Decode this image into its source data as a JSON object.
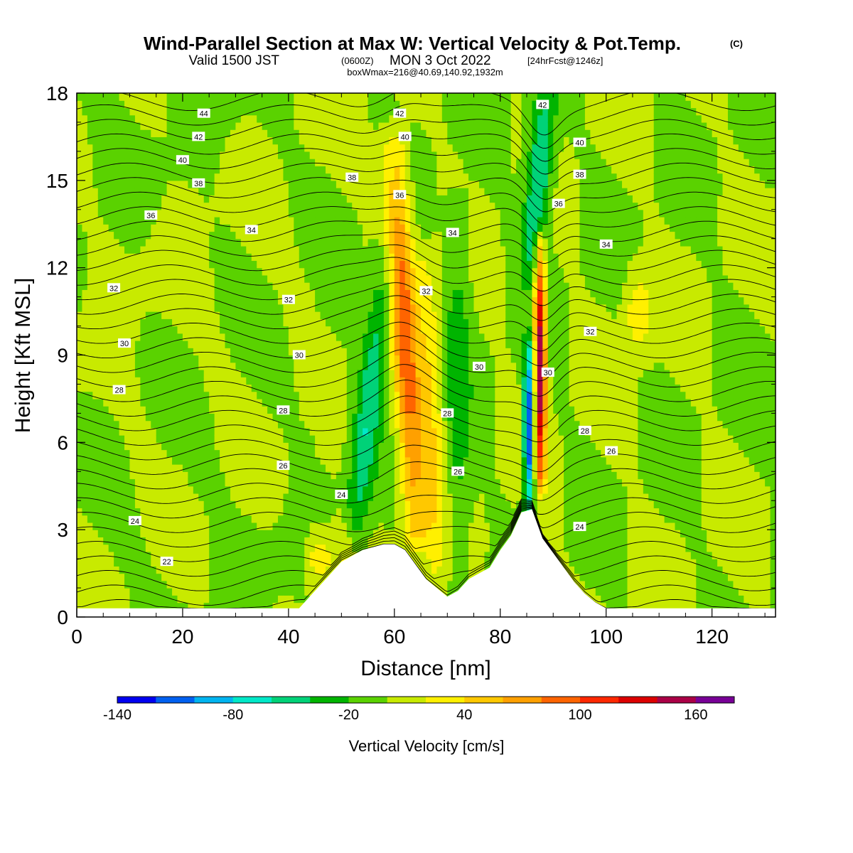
{
  "title": {
    "main": "Wind-Parallel Section at Max W: Vertical Velocity & Pot.Temp.",
    "copyright": "(C)",
    "valid_prefix": "Valid 1500 JST",
    "valid_zulu": "(0600Z)",
    "valid_date": "MON 3 Oct 2022",
    "forecast": "[24hrFcst@1246z]",
    "box_info": "boxWmax=216@40.69,140.92,1932m"
  },
  "chart_data": {
    "type": "heatmap",
    "xlabel": "Distance [nm]",
    "ylabel": "Height [Kft MSL]",
    "xlim": [
      0,
      132
    ],
    "ylim": [
      0,
      18
    ],
    "x_ticks": [
      0,
      20,
      40,
      60,
      80,
      100,
      120
    ],
    "y_ticks": [
      0,
      3,
      6,
      9,
      12,
      15,
      18
    ],
    "x_tick_labels": [
      "0",
      "20",
      "40",
      "60",
      "80",
      "100",
      "120"
    ],
    "y_tick_labels": [
      "0",
      "3",
      "6",
      "9",
      "12",
      "15",
      "18"
    ],
    "colorbar": {
      "title": "Vertical Velocity [cm/s]",
      "min": -140,
      "max": 180,
      "step": 20,
      "tick_values": [
        -140,
        -80,
        -20,
        40,
        100,
        160
      ],
      "tick_labels": [
        "-140",
        "-80",
        "-20",
        "40",
        "100",
        "160"
      ],
      "colors": [
        "#0000f0",
        "#0060f0",
        "#00b4f0",
        "#00e8c8",
        "#00d278",
        "#00b400",
        "#5ad200",
        "#c8ea00",
        "#fff000",
        "#ffc800",
        "#ffa000",
        "#ff6400",
        "#ff2800",
        "#dc0000",
        "#aa0046",
        "#780096"
      ]
    },
    "terrain": {
      "x": [
        0,
        42,
        44,
        46,
        48,
        50,
        52,
        54,
        58,
        60,
        62,
        64,
        66,
        68,
        70,
        72,
        74,
        78,
        80,
        82,
        84,
        86,
        88,
        90,
        92,
        94,
        96,
        98,
        100,
        132
      ],
      "z": [
        0.3,
        0.3,
        0.7,
        1.1,
        1.5,
        1.9,
        2.1,
        2.3,
        2.5,
        2.5,
        2.3,
        1.8,
        1.3,
        1.0,
        0.7,
        0.9,
        1.3,
        1.7,
        2.3,
        2.8,
        3.6,
        3.7,
        2.7,
        2.2,
        1.7,
        1.2,
        0.8,
        0.5,
        0.3,
        0.3
      ]
    },
    "features": [
      {
        "x0": 52,
        "x1": 58,
        "tilt": 0.2,
        "z0": 2.0,
        "z1": 12.0,
        "w": -55
      },
      {
        "x0": 64,
        "x1": 60,
        "tilt": -0.25,
        "z0": 3.0,
        "z1": 16.0,
        "w": 90
      },
      {
        "x0": 68,
        "x1": 66,
        "tilt": -0.12,
        "z0": 1.5,
        "z1": 12.0,
        "w": 40
      },
      {
        "x0": 72,
        "x1": 72,
        "tilt": 0.0,
        "z0": 1.5,
        "z1": 14.0,
        "w": -30
      },
      {
        "x0": 85.5,
        "x1": 85.5,
        "tilt": 0.0,
        "z0": 4.0,
        "z1": 9.0,
        "w": -130
      },
      {
        "x0": 87.5,
        "x1": 87.5,
        "tilt": 0.0,
        "z0": 5.0,
        "z1": 12.5,
        "w": 160
      },
      {
        "x0": 86,
        "x1": 88.5,
        "tilt": 0.15,
        "z0": 12.0,
        "z1": 18.0,
        "w": -70
      },
      {
        "x0": 106,
        "x1": 106,
        "tilt": 0.0,
        "z0": 9.5,
        "z1": 11.5,
        "w": 40
      },
      {
        "x0": 51,
        "x1": 51,
        "tilt": 0.0,
        "z0": 0.5,
        "z1": 3.0,
        "w": 40
      },
      {
        "x0": 46,
        "x1": 46,
        "tilt": 0.0,
        "z0": 1.5,
        "z1": 2.5,
        "w": 45
      }
    ],
    "isentropes": {
      "unit": "theta",
      "levels": [
        22,
        24,
        26,
        28,
        30,
        32,
        34,
        36,
        38,
        40,
        42,
        44
      ],
      "labels": [
        {
          "text": "44",
          "x": 24,
          "z": 17.3
        },
        {
          "text": "42",
          "x": 23,
          "z": 16.5
        },
        {
          "text": "40",
          "x": 20,
          "z": 15.7
        },
        {
          "text": "38",
          "x": 23,
          "z": 14.9
        },
        {
          "text": "36",
          "x": 14,
          "z": 13.8
        },
        {
          "text": "34",
          "x": 33,
          "z": 13.3
        },
        {
          "text": "32",
          "x": 7,
          "z": 11.3
        },
        {
          "text": "32",
          "x": 40,
          "z": 10.9
        },
        {
          "text": "30",
          "x": 9,
          "z": 9.4
        },
        {
          "text": "30",
          "x": 42,
          "z": 9.0
        },
        {
          "text": "28",
          "x": 8,
          "z": 7.8
        },
        {
          "text": "28",
          "x": 39,
          "z": 7.1
        },
        {
          "text": "26",
          "x": 39,
          "z": 5.2
        },
        {
          "text": "24",
          "x": 11,
          "z": 3.3
        },
        {
          "text": "24",
          "x": 50,
          "z": 4.2
        },
        {
          "text": "22",
          "x": 17,
          "z": 1.9
        },
        {
          "text": "42",
          "x": 61,
          "z": 17.3
        },
        {
          "text": "40",
          "x": 62,
          "z": 16.5
        },
        {
          "text": "38",
          "x": 52,
          "z": 15.1
        },
        {
          "text": "36",
          "x": 61,
          "z": 14.5
        },
        {
          "text": "34",
          "x": 71,
          "z": 13.2
        },
        {
          "text": "32",
          "x": 66,
          "z": 11.2
        },
        {
          "text": "30",
          "x": 76,
          "z": 8.6
        },
        {
          "text": "28",
          "x": 70,
          "z": 7.0
        },
        {
          "text": "26",
          "x": 72,
          "z": 5.0
        },
        {
          "text": "42",
          "x": 88,
          "z": 17.6
        },
        {
          "text": "40",
          "x": 95,
          "z": 16.3
        },
        {
          "text": "38",
          "x": 95,
          "z": 15.2
        },
        {
          "text": "36",
          "x": 91,
          "z": 14.2
        },
        {
          "text": "34",
          "x": 100,
          "z": 12.8
        },
        {
          "text": "32",
          "x": 97,
          "z": 9.8
        },
        {
          "text": "30",
          "x": 89,
          "z": 8.4
        },
        {
          "text": "28",
          "x": 96,
          "z": 6.4
        },
        {
          "text": "26",
          "x": 101,
          "z": 5.7
        },
        {
          "text": "24",
          "x": 95,
          "z": 3.1
        }
      ]
    }
  }
}
